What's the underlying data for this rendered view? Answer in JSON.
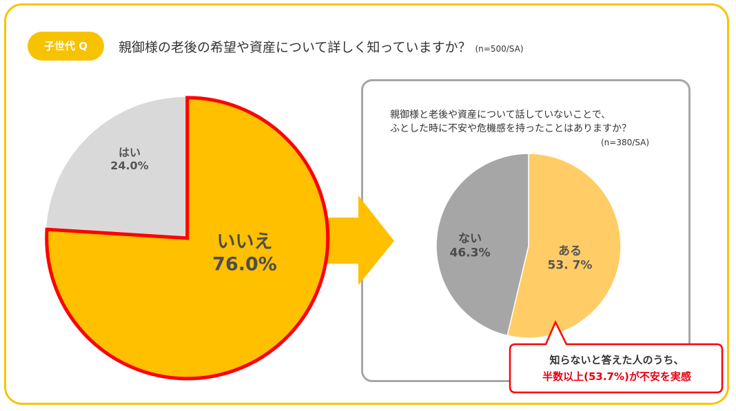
{
  "header": {
    "badge": "子世代 Q",
    "question": "親御様の老後の希望や資産について詳しく知っていますか？",
    "n_note": "(n=500/SA)"
  },
  "sub_panel": {
    "question_line1": "親御様と老後や資産について話していないことで、",
    "question_line2": "ふとした時に不安や危機感を持ったことはありますか？",
    "n_note": "(n=380/SA)"
  },
  "callout": {
    "line1": "知らないと答えた人のうち、",
    "line2": "半数以上(53.7%)が不安を実感"
  },
  "colors": {
    "frame": "#f7c300",
    "main_no": "#ffc000",
    "main_yes": "#d9d9d9",
    "highlight": "#ff0000",
    "sub_aru": "#ffcc66",
    "sub_nai": "#a6a6a6",
    "arrow": "#ffc000"
  },
  "chart_data": [
    {
      "type": "pie",
      "slices": [
        {
          "label": "いいえ",
          "value": 76.0,
          "display": "76.0%"
        },
        {
          "label": "はい",
          "value": 24.0,
          "display": "24.0%"
        }
      ]
    },
    {
      "type": "pie",
      "slices": [
        {
          "label": "ある",
          "value": 53.7,
          "display": "53. 7%"
        },
        {
          "label": "ない",
          "value": 46.3,
          "display": "46.3%"
        }
      ]
    }
  ]
}
